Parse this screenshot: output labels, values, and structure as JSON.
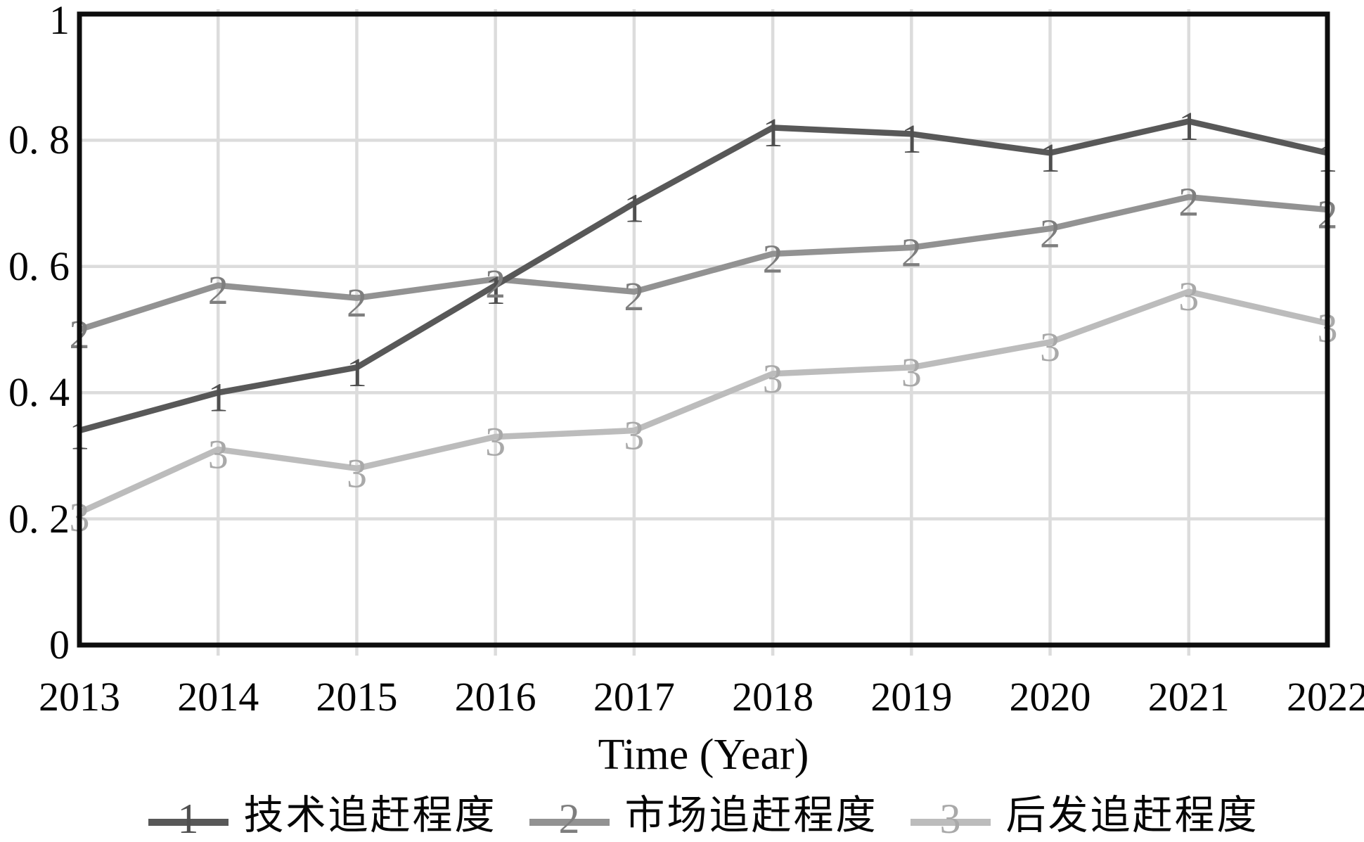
{
  "figure": {
    "background_color": "#ffffff",
    "axis_color": "#0d0d0d",
    "grid_color": "#dcdcdc",
    "text_color": "#050505"
  },
  "chart_data": {
    "type": "line",
    "title": "",
    "xlabel": "Time (Year)",
    "ylabel": "",
    "x": [
      2013,
      2014,
      2015,
      2016,
      2017,
      2018,
      2019,
      2020,
      2021,
      2022
    ],
    "x_tick_labels": [
      "2013",
      "2014",
      "2015",
      "2016",
      "2017",
      "2018",
      "2019",
      "2020",
      "2021",
      "2022"
    ],
    "ylim": [
      0,
      1
    ],
    "yticks": [
      0,
      0.2,
      0.4,
      0.6,
      0.8,
      1
    ],
    "y_tick_labels": [
      "0",
      "0. 2",
      "0. 4",
      "0. 6",
      "0. 8",
      "1"
    ],
    "grid": true,
    "legend_position": "bottom",
    "marker_style": "series-number-digit",
    "series": [
      {
        "name": "技术追赶程度",
        "marker": "1",
        "color": "#585858",
        "marker_color": "#4f4f4f",
        "values": [
          0.34,
          0.4,
          0.44,
          0.57,
          0.7,
          0.82,
          0.81,
          0.78,
          0.83,
          0.78
        ]
      },
      {
        "name": "市场追赶程度",
        "marker": "2",
        "color": "#929292",
        "marker_color": "#7e7e7e",
        "values": [
          0.5,
          0.57,
          0.55,
          0.58,
          0.56,
          0.62,
          0.63,
          0.66,
          0.71,
          0.69
        ]
      },
      {
        "name": "后发追赶程度",
        "marker": "3",
        "color": "#bcbcbc",
        "marker_color": "#a9a9a9",
        "values": [
          0.21,
          0.31,
          0.28,
          0.33,
          0.34,
          0.43,
          0.44,
          0.48,
          0.56,
          0.51
        ]
      }
    ]
  }
}
